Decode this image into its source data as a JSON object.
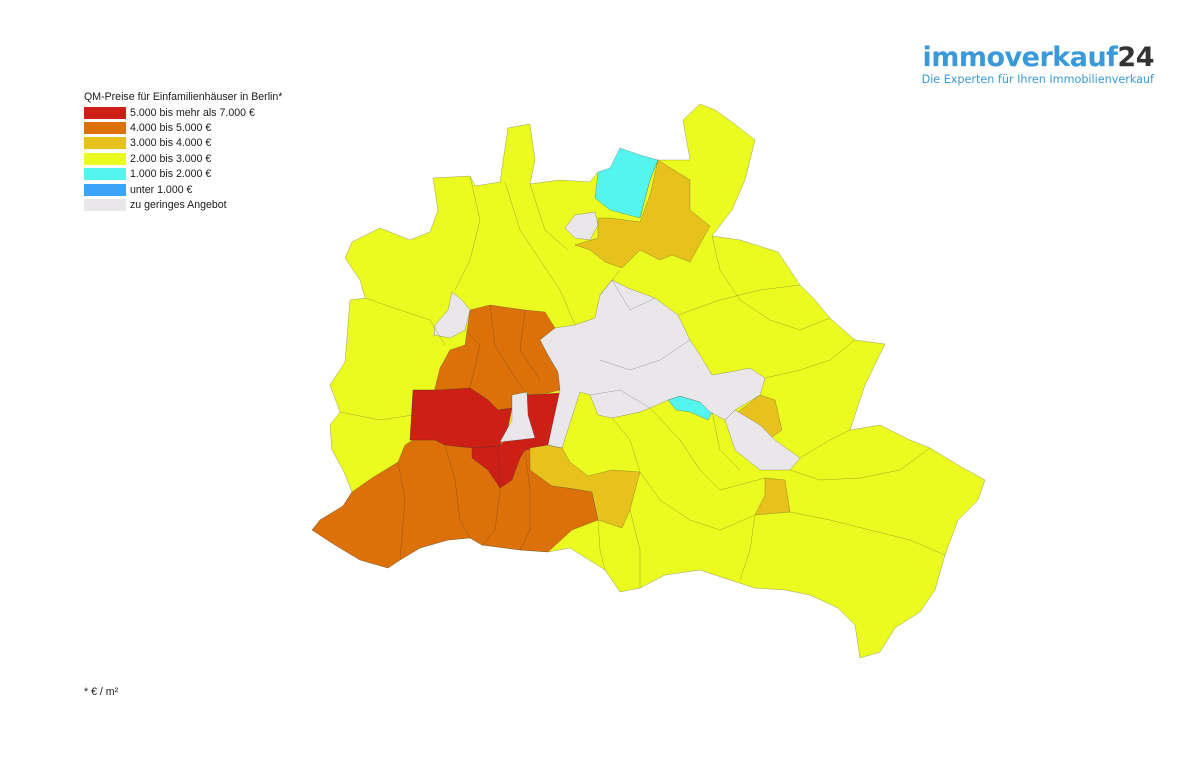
{
  "brand": {
    "name_part1": "immoverkauf",
    "name_part2": "24",
    "tagline": "Die Experten für Ihren Immobilienverkauf"
  },
  "legend": {
    "title": "QM-Preise für Einfamilienhäuser in Berlin*",
    "items": [
      {
        "label": "5.000 bis mehr als 7.000 €",
        "color": "#cc1f16"
      },
      {
        "label": "4.000 bis 5.000 €",
        "color": "#dc7009"
      },
      {
        "label": "3.000 bis 4.000 €",
        "color": "#e7c21d"
      },
      {
        "label": "2.000 bis 3.000 €",
        "color": "#ebfb1f"
      },
      {
        "label": "1.000 bis 2.000 €",
        "color": "#54f5ee"
      },
      {
        "label": "unter 1.000 €",
        "color": "#3ba4f5"
      },
      {
        "label": "zu geringes Angebot",
        "color": "#e9e7ea"
      }
    ]
  },
  "footnote": "* € / m²",
  "map": {
    "region": "Berlin",
    "category_keys": [
      "5.000 bis mehr als 7.000 €",
      "4.000 bis 5.000 €",
      "3.000 bis 4.000 €",
      "2.000 bis 3.000 €",
      "1.000 bis 2.000 €",
      "zu geringes Angebot"
    ]
  }
}
